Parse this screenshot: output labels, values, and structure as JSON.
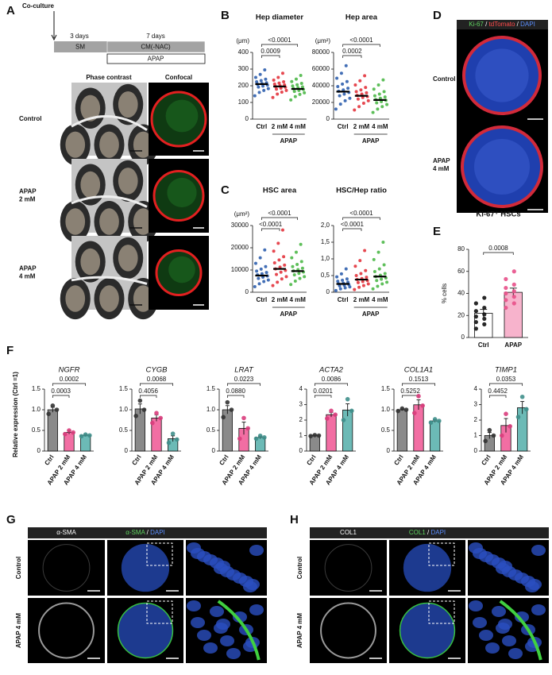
{
  "panel_labels": [
    "A",
    "B",
    "C",
    "D",
    "E",
    "F",
    "G",
    "H"
  ],
  "panel_a": {
    "coculture": "Co-culture",
    "sm_days": "3 days",
    "sm": "SM",
    "cm_days": "7 days",
    "cm": "CM(-NAC)",
    "apap": "APAP",
    "col_headers": [
      "Phase contrast",
      "Confocal"
    ],
    "rows": [
      [
        "Control"
      ],
      [
        "APAP",
        "2 mM"
      ],
      [
        "APAP",
        "4 mM"
      ]
    ]
  },
  "panel_d": {
    "header": [
      {
        "text": "Ki-67",
        "color": "#5fd35f"
      },
      {
        "text": " / ",
        "color": "#ffffff"
      },
      {
        "text": "tdTomato",
        "color": "#ff4a4a"
      },
      {
        "text": " / ",
        "color": "#ffffff"
      },
      {
        "text": "DAPI",
        "color": "#5b8fff"
      }
    ],
    "rows": [
      [
        "Control"
      ],
      [
        "APAP",
        "4 mM"
      ]
    ]
  },
  "panel_g": {
    "headers": [
      [
        {
          "text": "α-SMA",
          "color": "#ffffff"
        }
      ],
      [
        {
          "text": "α-SMA",
          "color": "#5fd35f"
        },
        {
          "text": " / ",
          "color": "#ffffff"
        },
        {
          "text": "DAPI",
          "color": "#5b8fff"
        }
      ]
    ],
    "rows": [
      "Control",
      "APAP 4 mM"
    ]
  },
  "panel_h": {
    "headers": [
      [
        {
          "text": "COL1",
          "color": "#ffffff"
        }
      ],
      [
        {
          "text": "COL1",
          "color": "#5fd35f"
        },
        {
          "text": " / ",
          "color": "#ffffff"
        },
        {
          "text": "DAPI",
          "color": "#5b8fff"
        }
      ]
    ],
    "rows": [
      "Control",
      "APAP 4 mM"
    ]
  },
  "f_ylabel": "Relative expression (Ctrl =1)",
  "chart_data": [
    {
      "type": "dot",
      "title": "Hep diameter",
      "unit": "(μm)",
      "categories": [
        "Ctrl",
        "2 mM",
        "4 mM"
      ],
      "group_label": "APAP",
      "colors": [
        "#2f5fae",
        "#e3343d",
        "#4cb848"
      ],
      "ylim": [
        0,
        400
      ],
      "yticks": [
        0,
        100,
        200,
        300,
        400
      ],
      "means": [
        210,
        196,
        181
      ],
      "points": [
        [
          140,
          160,
          172,
          183,
          192,
          198,
          204,
          209,
          213,
          218,
          224,
          231,
          239,
          250,
          268,
          295
        ],
        [
          130,
          150,
          162,
          172,
          180,
          186,
          191,
          196,
          200,
          205,
          210,
          216,
          224,
          234,
          250,
          275
        ],
        [
          115,
          135,
          148,
          158,
          166,
          172,
          178,
          183,
          188,
          193,
          199,
          206,
          214,
          225,
          240,
          262
        ]
      ],
      "brackets": [
        "0.0009",
        "<0.0001"
      ]
    },
    {
      "type": "dot",
      "title": "Hep area",
      "unit": "(μm²)",
      "categories": [
        "Ctrl",
        "2 mM",
        "4 mM"
      ],
      "group_label": "APAP",
      "colors": [
        "#2f5fae",
        "#e3343d",
        "#4cb848"
      ],
      "ylim": [
        0,
        80000
      ],
      "yticks": [
        0,
        20000,
        40000,
        60000,
        80000
      ],
      "means": [
        33000,
        28000,
        23000
      ],
      "points": [
        [
          12000,
          18000,
          22000,
          25000,
          28000,
          30000,
          32000,
          33500,
          35000,
          37000,
          39000,
          42000,
          45000,
          49000,
          55000,
          64000
        ],
        [
          11000,
          15000,
          19000,
          22000,
          24000,
          26000,
          27000,
          28500,
          30000,
          31500,
          33000,
          35000,
          38000,
          41000,
          46000,
          52000
        ],
        [
          8000,
          12000,
          15000,
          17500,
          19500,
          21000,
          22500,
          23500,
          25000,
          26500,
          28000,
          30000,
          33000,
          36000,
          41000,
          47000
        ]
      ],
      "brackets": [
        "0.0002",
        "<0.0001"
      ]
    },
    {
      "type": "dot",
      "title": "HSC area",
      "unit": "(μm²)",
      "categories": [
        "Ctrl",
        "2 mM",
        "4 mM"
      ],
      "group_label": "APAP",
      "colors": [
        "#2f5fae",
        "#e3343d",
        "#4cb848"
      ],
      "ylim": [
        0,
        30000
      ],
      "yticks": [
        0,
        10000,
        20000,
        30000
      ],
      "means": [
        7500,
        10500,
        9500
      ],
      "points": [
        [
          2500,
          3800,
          4800,
          5500,
          6200,
          6800,
          7300,
          7800,
          8300,
          8900,
          9500,
          10400,
          11500,
          13000,
          15500,
          19000
        ],
        [
          3000,
          4500,
          6000,
          7000,
          8000,
          9000,
          9800,
          10500,
          11300,
          12200,
          13200,
          14500,
          16000,
          18500,
          22000,
          28000
        ],
        [
          3500,
          5000,
          6200,
          7000,
          7800,
          8500,
          9100,
          9600,
          10200,
          10800,
          11500,
          12500,
          13800,
          15500,
          18000,
          21500
        ]
      ],
      "brackets": [
        "<0.0001",
        "<0.0001"
      ]
    },
    {
      "type": "dot",
      "title": "HSC/Hep ratio",
      "categories": [
        "Ctrl",
        "2 mM",
        "4 mM"
      ],
      "group_label": "APAP",
      "colors": [
        "#2f5fae",
        "#e3343d",
        "#4cb848"
      ],
      "ylim": [
        0,
        2
      ],
      "yticks": [
        0,
        {
          "value": 0.5,
          "label": "0,5"
        },
        {
          "value": 1,
          "label": "1,0"
        },
        {
          "value": 1.5,
          "label": "1,5"
        },
        {
          "value": 2,
          "label": "2,0"
        }
      ],
      "means": [
        0.25,
        0.38,
        0.47
      ],
      "points": [
        [
          0.05,
          0.1,
          0.13,
          0.16,
          0.19,
          0.21,
          0.23,
          0.25,
          0.27,
          0.3,
          0.33,
          0.36,
          0.4,
          0.46,
          0.55,
          0.7
        ],
        [
          0.08,
          0.15,
          0.2,
          0.25,
          0.29,
          0.32,
          0.35,
          0.38,
          0.41,
          0.45,
          0.5,
          0.56,
          0.65,
          0.78,
          0.95,
          1.25
        ],
        [
          0.1,
          0.18,
          0.25,
          0.3,
          0.35,
          0.39,
          0.43,
          0.47,
          0.51,
          0.56,
          0.62,
          0.7,
          0.82,
          0.98,
          1.2,
          1.5
        ]
      ],
      "brackets": [
        "<0.0001",
        "<0.0001"
      ]
    },
    {
      "type": "bar",
      "title": "Ki-67⁺ HSCs",
      "ylabel": "% cells",
      "categories": [
        "Ctrl",
        "APAP"
      ],
      "colors": [
        "#ffffff",
        "#f7b3cc"
      ],
      "point_colors": [
        "#111111",
        "#e8508a"
      ],
      "ylim": [
        0,
        80
      ],
      "yticks": [
        0,
        20,
        40,
        60,
        80
      ],
      "values": [
        22,
        41
      ],
      "errors": [
        3.5,
        3.8
      ],
      "points": [
        [
          8,
          12,
          14,
          17,
          19,
          21,
          24,
          27,
          31,
          36
        ],
        [
          27,
          31,
          34,
          37,
          40,
          42,
          45,
          48,
          53,
          60
        ]
      ],
      "brackets": [
        "0.0008"
      ]
    },
    {
      "type": "bar",
      "title": "NGFR",
      "categories": [
        "Ctrl",
        "APAP 2 mM",
        "APAP 4 mM"
      ],
      "colors": [
        "#8a8a8a",
        "#f26ea3",
        "#6cbab6"
      ],
      "point_colors": [
        "#333333",
        "#d93c7c",
        "#3f8f8b"
      ],
      "ylim": [
        0,
        1.5
      ],
      "yticks": [
        0,
        0.5,
        {
          "value": 1,
          "label": "1.0"
        },
        1.5
      ],
      "values": [
        1.0,
        0.45,
        0.38
      ],
      "errors": [
        0.06,
        0.04,
        0.02
      ],
      "points": [
        [
          0.9,
          1.0,
          1.1
        ],
        [
          0.41,
          0.45,
          0.5
        ],
        [
          0.36,
          0.38,
          0.4
        ]
      ],
      "brackets": [
        "0.0003",
        "0.0002"
      ]
    },
    {
      "type": "bar",
      "title": "CYGB",
      "categories": [
        "Ctrl",
        "APAP 2 mM",
        "APAP 4 mM"
      ],
      "colors": [
        "#8a8a8a",
        "#f26ea3",
        "#6cbab6"
      ],
      "point_colors": [
        "#333333",
        "#d93c7c",
        "#3f8f8b"
      ],
      "ylim": [
        0,
        1.5
      ],
      "yticks": [
        0,
        0.5,
        {
          "value": 1,
          "label": "1.0"
        },
        1.5
      ],
      "values": [
        1.02,
        0.8,
        0.3
      ],
      "errors": [
        0.12,
        0.08,
        0.07
      ],
      "points": [
        [
          0.85,
          1.0,
          1.22
        ],
        [
          0.68,
          0.8,
          0.92
        ],
        [
          0.2,
          0.28,
          0.42
        ]
      ],
      "brackets": [
        "0.4056",
        "0.0068"
      ]
    },
    {
      "type": "bar",
      "title": "LRAT",
      "categories": [
        "Ctrl",
        "APAP 2 mM",
        "APAP 4 mM"
      ],
      "colors": [
        "#8a8a8a",
        "#f26ea3",
        "#6cbab6"
      ],
      "point_colors": [
        "#333333",
        "#d93c7c",
        "#3f8f8b"
      ],
      "ylim": [
        0,
        1.5
      ],
      "yticks": [
        0,
        0.5,
        {
          "value": 1,
          "label": "1.0"
        },
        1.5
      ],
      "values": [
        1.0,
        0.55,
        0.33
      ],
      "errors": [
        0.1,
        0.15,
        0.03
      ],
      "points": [
        [
          0.82,
          1.0,
          1.18
        ],
        [
          0.3,
          0.55,
          0.8
        ],
        [
          0.3,
          0.33,
          0.37
        ]
      ],
      "brackets": [
        "0.0880",
        "0.0223"
      ]
    },
    {
      "type": "bar",
      "title": "ACTA2",
      "categories": [
        "Ctrl",
        "APAP 2 mM",
        "APAP 4 mM"
      ],
      "colors": [
        "#8a8a8a",
        "#f26ea3",
        "#6cbab6"
      ],
      "point_colors": [
        "#333333",
        "#d93c7c",
        "#3f8f8b"
      ],
      "ylim": [
        0,
        4
      ],
      "yticks": [
        0,
        1,
        2,
        3,
        4
      ],
      "values": [
        1.0,
        2.35,
        2.65
      ],
      "errors": [
        0.03,
        0.15,
        0.4
      ],
      "points": [
        [
          0.97,
          1.0,
          1.03
        ],
        [
          2.1,
          2.35,
          2.6
        ],
        [
          2.0,
          2.6,
          3.35
        ]
      ],
      "brackets": [
        "0.0201",
        "0.0086"
      ]
    },
    {
      "type": "bar",
      "title": "COL1A1",
      "categories": [
        "Ctrl",
        "APAP 2 mM",
        "APAP 4 mM"
      ],
      "colors": [
        "#8a8a8a",
        "#f26ea3",
        "#6cbab6"
      ],
      "point_colors": [
        "#333333",
        "#d93c7c",
        "#3f8f8b"
      ],
      "ylim": [
        0,
        1.5
      ],
      "yticks": [
        0,
        0.5,
        {
          "value": 1,
          "label": "1.0"
        },
        1.5
      ],
      "values": [
        1.0,
        1.12,
        0.73
      ],
      "errors": [
        0.02,
        0.12,
        0.03
      ],
      "points": [
        [
          0.97,
          1.0,
          1.03
        ],
        [
          0.92,
          1.1,
          1.33
        ],
        [
          0.69,
          0.73,
          0.77
        ]
      ],
      "brackets": [
        "0.5252",
        "0.1513"
      ]
    },
    {
      "type": "bar",
      "title": "TIMP1",
      "categories": [
        "Ctrl",
        "APAP 2 mM",
        "APAP 4 mM"
      ],
      "colors": [
        "#8a8a8a",
        "#f26ea3",
        "#6cbab6"
      ],
      "point_colors": [
        "#333333",
        "#d93c7c",
        "#3f8f8b"
      ],
      "ylim": [
        0,
        4
      ],
      "yticks": [
        0,
        1,
        2,
        3,
        4
      ],
      "values": [
        1.0,
        1.65,
        2.8
      ],
      "errors": [
        0.2,
        0.45,
        0.4
      ],
      "points": [
        [
          0.65,
          1.0,
          1.35
        ],
        [
          1.0,
          1.6,
          2.4
        ],
        [
          2.2,
          2.7,
          3.5
        ]
      ],
      "brackets": [
        "0.4452",
        "0.0353"
      ]
    }
  ]
}
